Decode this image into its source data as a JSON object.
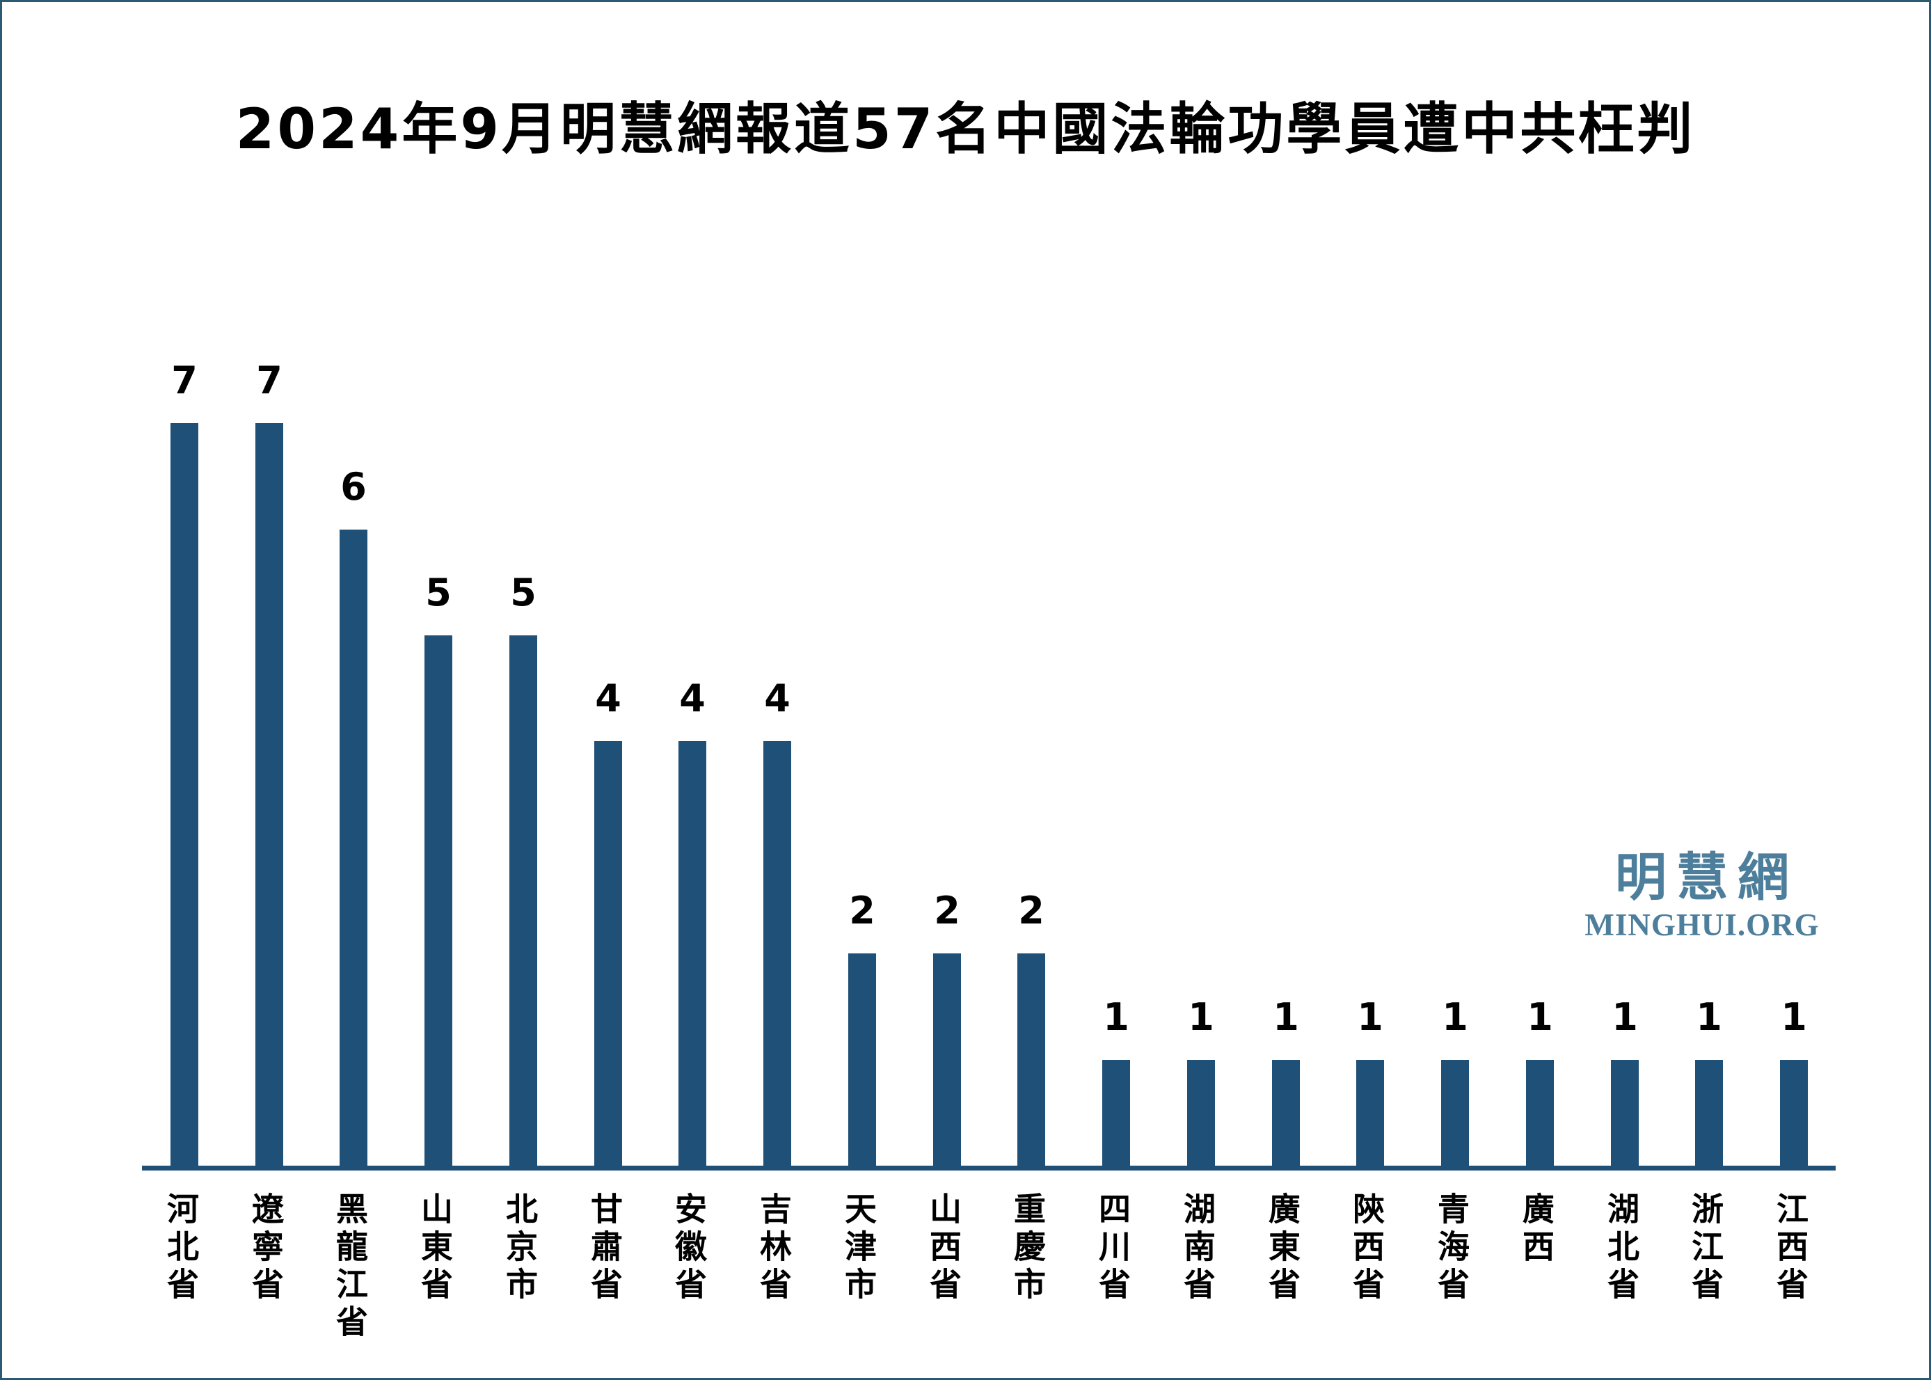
{
  "page": {
    "background_color": "#ffffff",
    "border_color": "#2b5b72"
  },
  "title": "2024年9月明慧網報道57名中國法輪功學員遭中共枉判",
  "logo": {
    "chinese": "明慧網",
    "latin": "MINGHUI.ORG",
    "color": "#4d7e9b"
  },
  "chart_data": {
    "type": "bar",
    "title": "2024年9月明慧網報道57名中國法輪功學員遭中共枉判",
    "categories": [
      "河北省",
      "遼寧省",
      "黑龍江省",
      "山東省",
      "北京市",
      "甘肅省",
      "安徽省",
      "吉林省",
      "天津市",
      "山西省",
      "重慶市",
      "四川省",
      "湖南省",
      "廣東省",
      "陝西省",
      "青海省",
      "廣西",
      "湖北省",
      "浙江省",
      "江西省"
    ],
    "values": [
      7,
      7,
      6,
      5,
      5,
      4,
      4,
      4,
      2,
      2,
      2,
      1,
      1,
      1,
      1,
      1,
      1,
      1,
      1,
      1
    ],
    "total": 57,
    "xlabel": "",
    "ylabel": "",
    "ylim": [
      0,
      7
    ],
    "grid": false,
    "legend": false,
    "data_labels": true,
    "bar_color": "#1f5078",
    "x_axis_line": true,
    "y_axis_line": false
  }
}
